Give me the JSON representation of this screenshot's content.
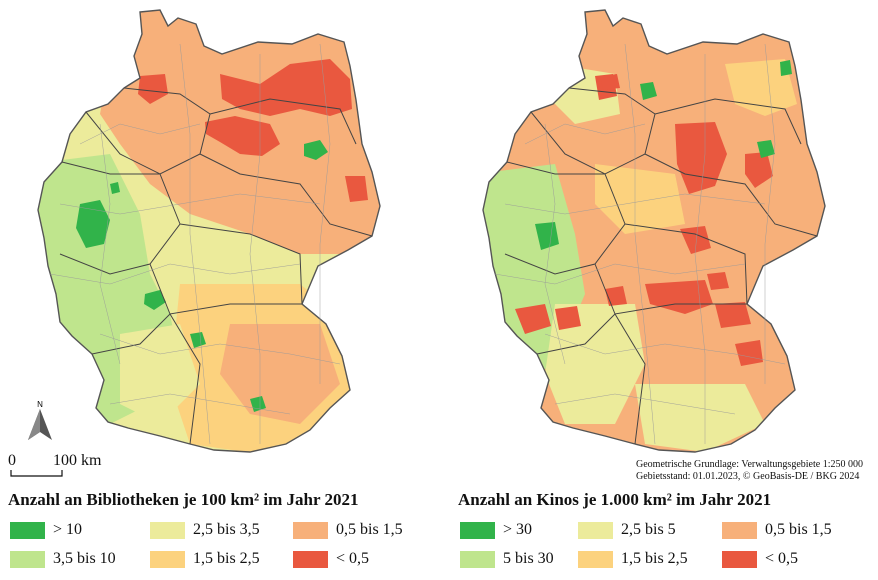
{
  "scalebar": {
    "zero": "0",
    "distance": "100 km"
  },
  "north": "N",
  "source": {
    "line1": "Geometrische Grundlage: Verwaltungsgebiete 1:250 000",
    "line2": "Gebietsstand: 01.01.2023, © GeoBasis-DE / BKG 2024"
  },
  "colors": {
    "cat1": "#31b34a",
    "cat2": "#bfe58d",
    "cat3": "#eceb9b",
    "cat4": "#fcd27e",
    "cat5": "#f7b07a",
    "cat6": "#e9583f"
  },
  "left_map": {
    "title": "Anzahl an Bibliotheken je 100 km² im Jahr 2021",
    "legend": [
      {
        "label": "> 10",
        "color": "#31b34a"
      },
      {
        "label": "3,5 bis 10",
        "color": "#bfe58d"
      },
      {
        "label": "2,5 bis 3,5",
        "color": "#eceb9b"
      },
      {
        "label": "1,5 bis 2,5",
        "color": "#fcd27e"
      },
      {
        "label": "0,5 bis 1,5",
        "color": "#f7b07a"
      },
      {
        "label": "< 0,5",
        "color": "#e9583f"
      }
    ]
  },
  "right_map": {
    "title": "Anzahl an Kinos je 1.000 km² im Jahr 2021",
    "legend": [
      {
        "label": "> 30",
        "color": "#31b34a"
      },
      {
        "label": "5 bis 30",
        "color": "#bfe58d"
      },
      {
        "label": "2,5 bis 5",
        "color": "#eceb9b"
      },
      {
        "label": "1,5 bis 2,5",
        "color": "#fcd27e"
      },
      {
        "label": "0,5 bis 1,5",
        "color": "#f7b07a"
      },
      {
        "label": "< 0,5",
        "color": "#e9583f"
      }
    ]
  }
}
